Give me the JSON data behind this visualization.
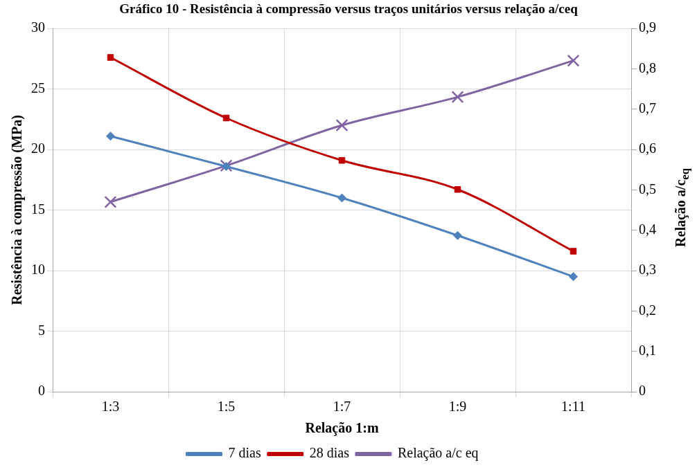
{
  "chart_data": {
    "type": "line",
    "title": "Gráfico 10 - Resistência à compressão versus traços unitários versus relação a/ceq",
    "xlabel": "Relação 1:m",
    "ylabel": "Resistência à compressão (MPa)",
    "y2label": "Relação a/c$_{eq}$",
    "categories": [
      "1:3",
      "1:5",
      "1:7",
      "1:9",
      "1:11"
    ],
    "series": [
      {
        "name": "7 dias",
        "color": "#4f81bd",
        "marker": "diamond",
        "values": [
          21.1,
          18.6,
          16.0,
          12.9,
          9.5
        ]
      },
      {
        "name": "28 dias",
        "color": "#c00000",
        "marker": "square",
        "values": [
          27.6,
          22.6,
          19.1,
          16.7,
          11.6
        ]
      },
      {
        "name": "Relação a/c eq",
        "color": "#8064a2",
        "marker": "cross",
        "axis": "y2",
        "values": [
          0.47,
          0.56,
          0.66,
          0.73,
          0.82
        ]
      }
    ],
    "ylim": [
      0,
      30
    ],
    "yticks": [
      0,
      5,
      10,
      15,
      20,
      25,
      30
    ],
    "y2lim": [
      0,
      0.9
    ],
    "y2ticks": [
      0,
      {
        "value": 0.1,
        "label": "0,1"
      },
      {
        "value": 0.2,
        "label": "0,2"
      },
      {
        "value": 0.3,
        "label": "0,3"
      },
      {
        "value": 0.4,
        "label": "0,4"
      },
      {
        "value": 0.5,
        "label": "0,5"
      },
      {
        "value": 0.6,
        "label": "0,6"
      },
      {
        "value": 0.7,
        "label": "0,7"
      },
      {
        "value": 0.8,
        "label": "0,8"
      },
      {
        "value": 0.9,
        "label": "0,9"
      }
    ],
    "grid": true,
    "legend": "bottom"
  }
}
